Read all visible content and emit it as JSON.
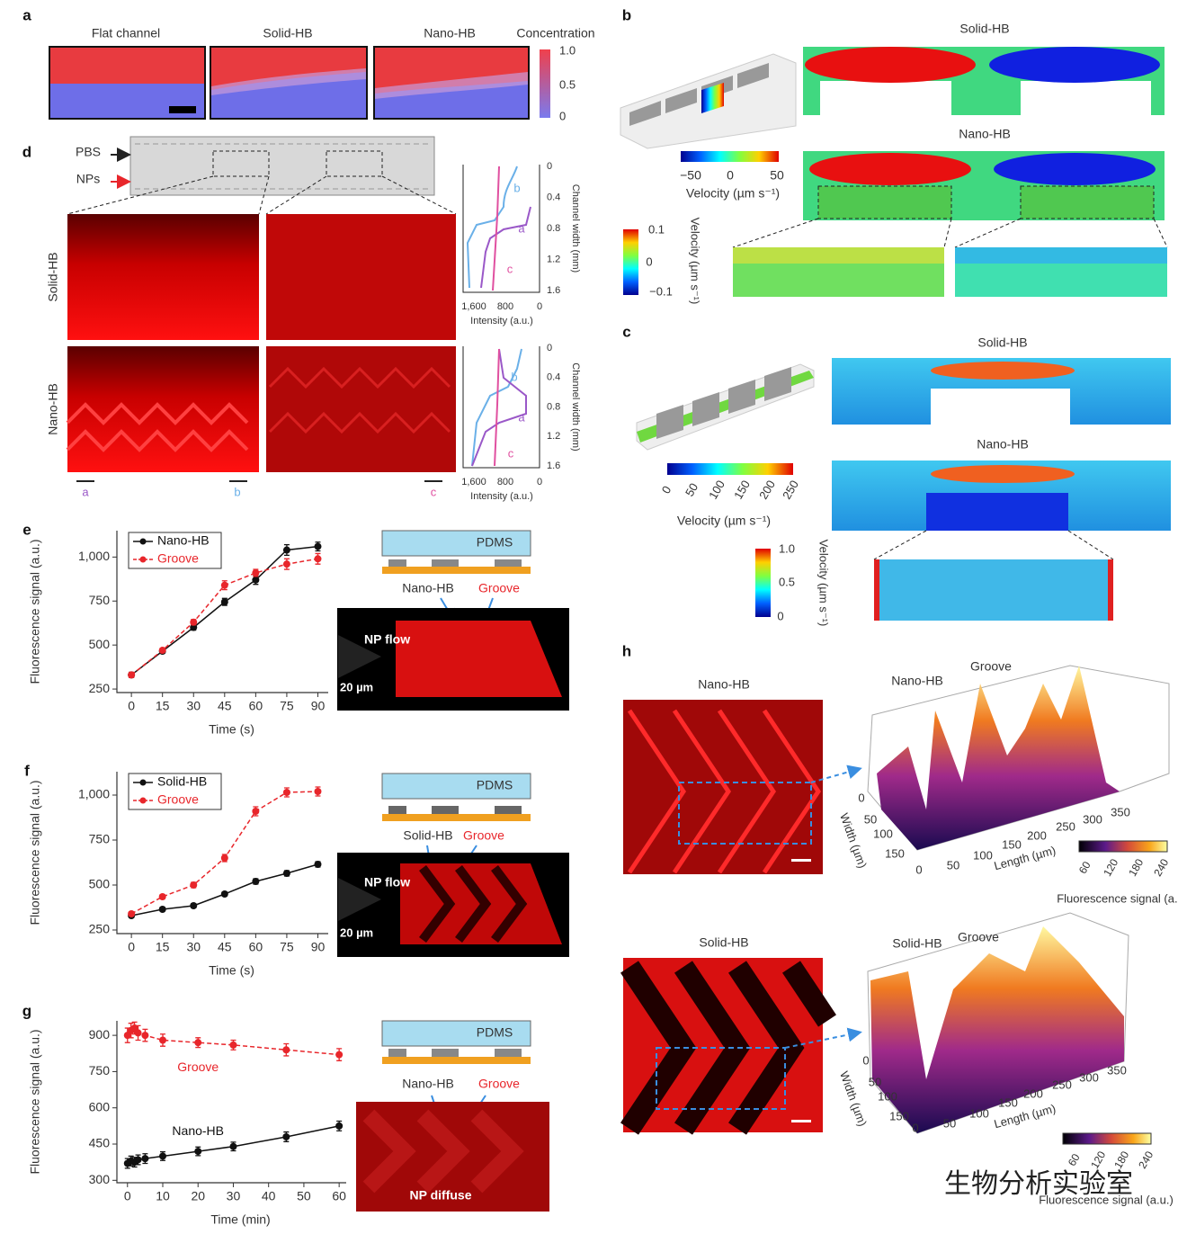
{
  "panel_labels": [
    "a",
    "b",
    "c",
    "d",
    "e",
    "f",
    "g",
    "h"
  ],
  "a": {
    "titles": [
      "Flat channel",
      "Solid-HB",
      "Nano-HB"
    ],
    "colorbar_title": "Concentration",
    "colorbar_ticks": [
      "1.0",
      "0.5",
      "0"
    ]
  },
  "b": {
    "titles": [
      "Solid-HB",
      "Nano-HB"
    ],
    "colorbar_ticks": [
      "−50",
      "0",
      "50"
    ],
    "colorbar_label": "Velocity (µm s⁻¹)",
    "inset_ticks": [
      "0.1",
      "0",
      "−0.1"
    ],
    "inset_label": "Velocity (µm s⁻¹)"
  },
  "c": {
    "titles": [
      "Solid-HB",
      "Nano-HB"
    ],
    "colorbar_ticks": [
      "0",
      "50",
      "100",
      "150",
      "200",
      "250"
    ],
    "colorbar_label": "Velocity (µm s⁻¹)",
    "inset_ticks": [
      "1.0",
      "0.5",
      "0"
    ],
    "inset_label": "Velocity (µm s⁻¹)"
  },
  "d": {
    "inlets": [
      "PBS",
      "NPs"
    ],
    "rows": [
      "Solid-HB",
      "Nano-HB"
    ],
    "region_labels": [
      "a",
      "b",
      "c"
    ],
    "profile_labels": [
      "b",
      "a",
      "c"
    ],
    "profile_x_ticks": [
      "1,600",
      "800",
      "0"
    ],
    "profile_x_label": "Intensity (a.u.)",
    "profile_y_ticks": [
      "0",
      "0.4",
      "0.8",
      "1.2",
      "1.6"
    ],
    "profile_y_label": "Channel width (mm)"
  },
  "schematics": [
    {
      "layer": "PDMS",
      "labels": [
        "Nano-HB",
        "Groove"
      ],
      "flow": "NP flow",
      "scale": "20 µm"
    },
    {
      "layer": "PDMS",
      "labels": [
        "Solid-HB",
        "Groove"
      ],
      "flow": "NP flow",
      "scale": "20 µm"
    },
    {
      "layer": "PDMS",
      "labels": [
        "Nano-HB",
        "Groove"
      ],
      "flow": "NP diffuse"
    }
  ],
  "h": {
    "images": [
      {
        "title": "Nano-HB",
        "peak_labels": [
          "Nano-HB",
          "Groove"
        ]
      },
      {
        "title": "Solid-HB",
        "peak_labels": [
          "Solid-HB",
          "Groove"
        ]
      }
    ],
    "width_label": "Width (µm)",
    "length_label": "Length (µm)",
    "width_ticks": [
      "0",
      "50",
      "100",
      "150"
    ],
    "length_ticks": [
      "0",
      "50",
      "100",
      "150",
      "200",
      "250",
      "300",
      "350"
    ],
    "colorbar_ticks": [
      "60",
      "120",
      "180",
      "240"
    ],
    "colorbar_label": "Fluorescence signal (a.u.)"
  },
  "watermark": "生物分析实验室",
  "chart_data": [
    {
      "type": "line",
      "ylabel": "Fluorescence signal (a.u.)",
      "xlabel": "Time (s)",
      "x": [
        0,
        15,
        30,
        45,
        60,
        75,
        90
      ],
      "xlim": [
        -7,
        95
      ],
      "xticks": [
        0,
        15,
        30,
        45,
        60,
        75,
        90
      ],
      "ylim": [
        230,
        1150
      ],
      "yticks": [
        250,
        500,
        750,
        {
          "value": 1000,
          "label": "1,000"
        }
      ],
      "legend": "upper left",
      "series": [
        {
          "name": "Nano-HB",
          "color": "#111111",
          "line_style": "solid",
          "values": [
            330,
            465,
            600,
            745,
            870,
            1040,
            1060
          ],
          "errors": [
            15,
            12,
            15,
            20,
            25,
            30,
            25
          ]
        },
        {
          "name": "Groove",
          "color": "#e8262b",
          "line_style": "dashed",
          "values": [
            330,
            470,
            630,
            840,
            910,
            960,
            990
          ],
          "errors": [
            15,
            12,
            15,
            25,
            20,
            30,
            30
          ]
        }
      ]
    },
    {
      "type": "line",
      "ylabel": "Fluorescence signal (a.u.)",
      "xlabel": "Time (s)",
      "x": [
        0,
        15,
        30,
        45,
        60,
        75,
        90
      ],
      "xlim": [
        -7,
        95
      ],
      "xticks": [
        0,
        15,
        30,
        45,
        60,
        75,
        90
      ],
      "ylim": [
        230,
        1130
      ],
      "yticks": [
        250,
        500,
        750,
        {
          "value": 1000,
          "label": "1,000"
        }
      ],
      "legend": "upper left",
      "series": [
        {
          "name": "Solid-HB",
          "color": "#111111",
          "line_style": "solid",
          "values": [
            330,
            365,
            385,
            450,
            520,
            565,
            615
          ],
          "errors": [
            12,
            10,
            12,
            12,
            15,
            15,
            15
          ]
        },
        {
          "name": "Groove",
          "color": "#e8262b",
          "line_style": "dashed",
          "values": [
            340,
            435,
            500,
            650,
            910,
            1015,
            1020
          ],
          "errors": [
            12,
            12,
            15,
            20,
            25,
            25,
            25
          ]
        }
      ]
    },
    {
      "type": "line",
      "ylabel": "Fluorescence signal (a.u.)",
      "xlabel": "Time (min)",
      "x": [
        0,
        1,
        2,
        3,
        5,
        10,
        20,
        30,
        45,
        60
      ],
      "xlim": [
        -3,
        62
      ],
      "xticks": [
        0,
        10,
        20,
        30,
        40,
        50,
        60
      ],
      "ylim": [
        290,
        960
      ],
      "yticks": [
        300,
        450,
        600,
        750,
        900
      ],
      "legend": "inline",
      "series": [
        {
          "name": "Groove",
          "color": "#e8262b",
          "line_style": "dashed",
          "values": [
            900,
            920,
            930,
            910,
            900,
            880,
            870,
            860,
            840,
            820
          ],
          "errors": [
            30,
            30,
            25,
            30,
            25,
            25,
            20,
            20,
            25,
            25
          ]
        },
        {
          "name": "Nano-HB",
          "color": "#111111",
          "line_style": "solid",
          "values": [
            370,
            380,
            375,
            385,
            390,
            400,
            420,
            440,
            480,
            525
          ],
          "errors": [
            20,
            20,
            20,
            20,
            20,
            18,
            18,
            18,
            20,
            20
          ]
        }
      ]
    }
  ]
}
